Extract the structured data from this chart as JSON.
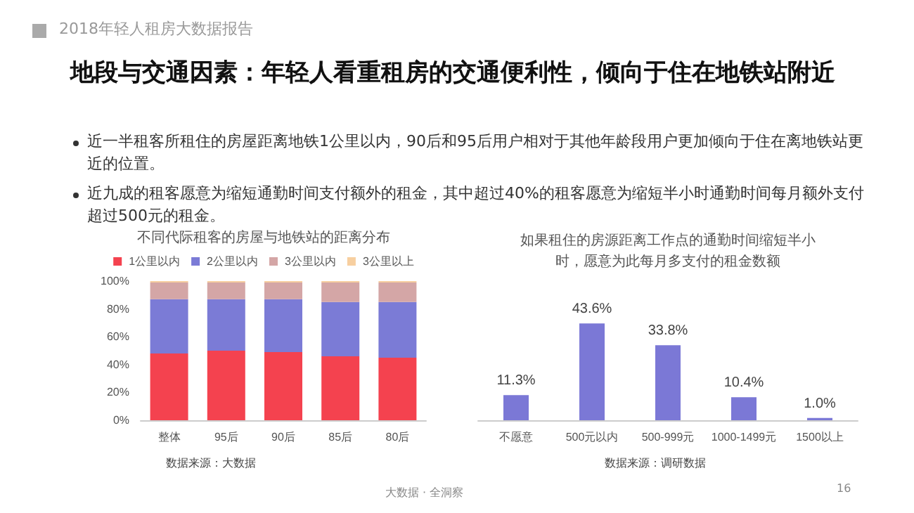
{
  "chart_data": [
    {
      "type": "bar",
      "stacked": true,
      "title": "不同代际租客的房屋与地铁站的距离分布",
      "categories": [
        "整体",
        "95后",
        "90后",
        "85后",
        "80后"
      ],
      "series": [
        {
          "name": "1公里以内",
          "color": "#f4424f",
          "values": [
            48,
            50,
            49,
            46,
            45
          ]
        },
        {
          "name": "2公里以内",
          "color": "#7b7bd6",
          "values": [
            39,
            37,
            38,
            39,
            40
          ]
        },
        {
          "name": "3公里以内",
          "color": "#d4a6a6",
          "values": [
            12,
            12,
            12,
            14,
            14
          ]
        },
        {
          "name": "3公里以上",
          "color": "#f7cfa0",
          "values": [
            1,
            1,
            1,
            1,
            1
          ]
        }
      ],
      "ylim": [
        0,
        100
      ],
      "yticks": [
        {
          "value": 0,
          "label": "0%"
        },
        {
          "value": 20,
          "label": "20%"
        },
        {
          "value": 40,
          "label": "40%"
        },
        {
          "value": 60,
          "label": "60%"
        },
        {
          "value": 80,
          "label": "80%"
        },
        {
          "value": 100,
          "label": "100%"
        }
      ],
      "grid": false,
      "legend": "top",
      "annotations": [
        "2018年轻人租房大数据报告",
        "地段与交通因素：年轻人看重租房的交通便利性，倾向于住在地铁站附近",
        "近一半租客所租住的房屋距离地铁1公里以内，90后和95后用户相对于其他年龄段用户更加倾向于住在离地铁站更近的位置。",
        "近九成的租客愿意为缩短通勤时间支付额外的租金，其中超过40%的租客愿意为缩短半小时通勤时间每月额外支付超过500元的租金。",
        "数据来源：大数据"
      ]
    },
    {
      "type": "bar",
      "title": "如果租住的房源距离工作点的通勤时间缩短半小时，愿意为此每月多支付的租金数额",
      "categories": [
        "不愿意",
        "500元以内",
        "500-999元",
        "1000-1499元",
        "1500以上"
      ],
      "values": [
        11.3,
        43.6,
        33.8,
        10.4,
        1.0
      ],
      "color": "#7b78d6",
      "value_labels": [
        "11.3%",
        "43.6%",
        "33.8%",
        "10.4%",
        "1.0%"
      ],
      "annotations": [
        "数据来源：调研数据",
        "大数据 · 全洞察",
        "16"
      ]
    }
  ]
}
